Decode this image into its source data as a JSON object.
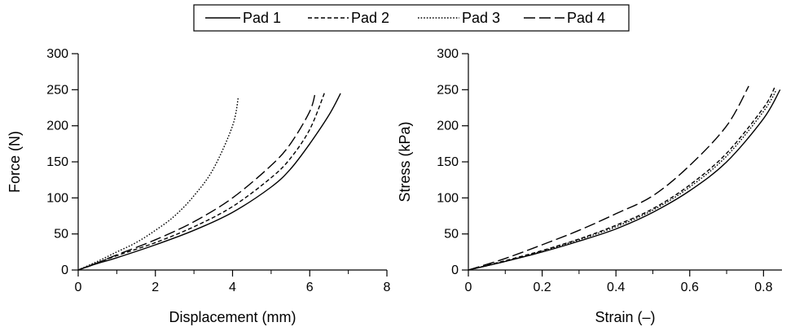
{
  "legend": {
    "entries": [
      {
        "name": "Pad 1",
        "dash": "solid"
      },
      {
        "name": "Pad 2",
        "dash": "short-dash"
      },
      {
        "name": "Pad 3",
        "dash": "dotted"
      },
      {
        "name": "Pad 4",
        "dash": "long-dash"
      }
    ]
  },
  "chart_data": [
    {
      "type": "line",
      "xlabel": "Displacement (mm)",
      "ylabel": "Force (N)",
      "xlim": [
        0,
        8
      ],
      "ylim": [
        0,
        300
      ],
      "xticks": [
        0,
        2,
        4,
        6,
        8
      ],
      "yticks": [
        0,
        50,
        100,
        150,
        200,
        250,
        300
      ],
      "series": [
        {
          "name": "Pad 1",
          "x": [
            0,
            0.5,
            1,
            2,
            3,
            4,
            5,
            5.5,
            6,
            6.5,
            6.8
          ],
          "y": [
            0,
            9,
            17,
            35,
            55,
            80,
            115,
            140,
            175,
            215,
            245
          ]
        },
        {
          "name": "Pad 2",
          "x": [
            0,
            0.5,
            1,
            2,
            3,
            4,
            5,
            5.5,
            6,
            6.4
          ],
          "y": [
            0,
            10,
            20,
            38,
            60,
            88,
            128,
            155,
            195,
            248
          ]
        },
        {
          "name": "Pad 3",
          "x": [
            0,
            0.5,
            1,
            1.5,
            2,
            2.5,
            3,
            3.5,
            4,
            4.15
          ],
          "y": [
            0,
            12,
            25,
            38,
            55,
            75,
            103,
            140,
            200,
            240
          ]
        },
        {
          "name": "Pad 4",
          "x": [
            0,
            0.5,
            1,
            2,
            3,
            4,
            5,
            5.5,
            6,
            6.15
          ],
          "y": [
            0,
            10,
            21,
            42,
            67,
            100,
            145,
            175,
            220,
            248
          ]
        }
      ]
    },
    {
      "type": "line",
      "xlabel": "Strain (–)",
      "ylabel": "Stress (kPa)",
      "xlim": [
        0,
        0.85
      ],
      "ylim": [
        0,
        300
      ],
      "xticks": [
        0,
        0.2,
        0.4,
        0.6,
        0.8
      ],
      "xtick_labels": [
        "0",
        "0.2",
        "0.4",
        "0.6",
        "0.8"
      ],
      "yticks": [
        0,
        50,
        100,
        150,
        200,
        250,
        300
      ],
      "series": [
        {
          "name": "Pad 1",
          "x": [
            0,
            0.1,
            0.2,
            0.3,
            0.4,
            0.5,
            0.6,
            0.7,
            0.8,
            0.845
          ],
          "y": [
            0,
            12,
            25,
            40,
            57,
            80,
            110,
            150,
            210,
            250
          ]
        },
        {
          "name": "Pad 2",
          "x": [
            0,
            0.1,
            0.2,
            0.3,
            0.4,
            0.5,
            0.6,
            0.7,
            0.8,
            0.83
          ],
          "y": [
            0,
            13,
            27,
            43,
            62,
            85,
            118,
            162,
            225,
            253
          ]
        },
        {
          "name": "Pad 3",
          "x": [
            0,
            0.1,
            0.2,
            0.3,
            0.4,
            0.5,
            0.6,
            0.7,
            0.8,
            0.835
          ],
          "y": [
            0,
            12,
            26,
            42,
            60,
            83,
            115,
            158,
            220,
            250
          ]
        },
        {
          "name": "Pad 4",
          "x": [
            0,
            0.1,
            0.2,
            0.3,
            0.4,
            0.5,
            0.6,
            0.7,
            0.76
          ],
          "y": [
            0,
            16,
            35,
            55,
            78,
            103,
            145,
            200,
            255
          ]
        }
      ]
    }
  ]
}
